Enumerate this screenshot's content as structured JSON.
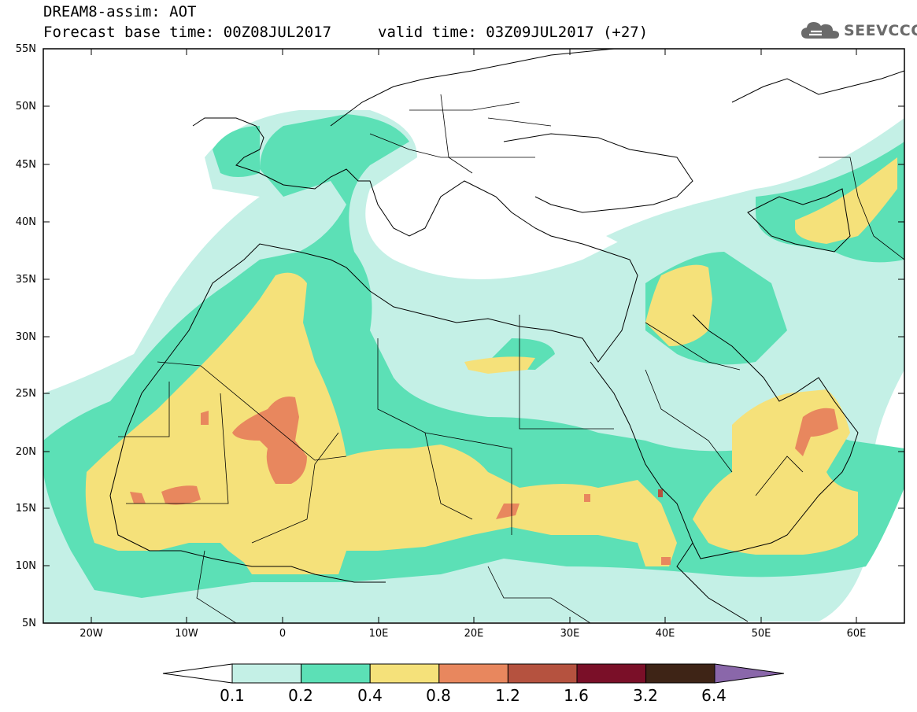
{
  "header": {
    "title": "DREAM8-assim: AOT",
    "base_time": "Forecast base time: 00Z08JUL2017",
    "valid_time": "valid time: 03Z09JUL2017 (+27)"
  },
  "logo": {
    "text": "SEEVCCC",
    "icon": "cloud-icon",
    "color": "#6a6a6a"
  },
  "map": {
    "projection": "lat-lon",
    "lon_range": [
      -25,
      65
    ],
    "lat_range": [
      5,
      55
    ],
    "lat_labels": [
      "55N",
      "50N",
      "45N",
      "40N",
      "35N",
      "30N",
      "25N",
      "20N",
      "15N",
      "10N",
      "5N"
    ],
    "lon_labels": [
      "20W",
      "10W",
      "0",
      "10E",
      "20E",
      "30E",
      "40E",
      "50E",
      "60E"
    ],
    "variable": "Aerosol optical thickness"
  },
  "colorbar": {
    "levels": [
      "0.1",
      "0.2",
      "0.4",
      "0.8",
      "1.2",
      "1.6",
      "3.2",
      "6.4"
    ],
    "colors": [
      "#c4f0e6",
      "#5ce0b6",
      "#f5e17a",
      "#e8875e",
      "#b5523f",
      "#7a0f28",
      "#3e2416",
      "#8a67aa"
    ]
  }
}
